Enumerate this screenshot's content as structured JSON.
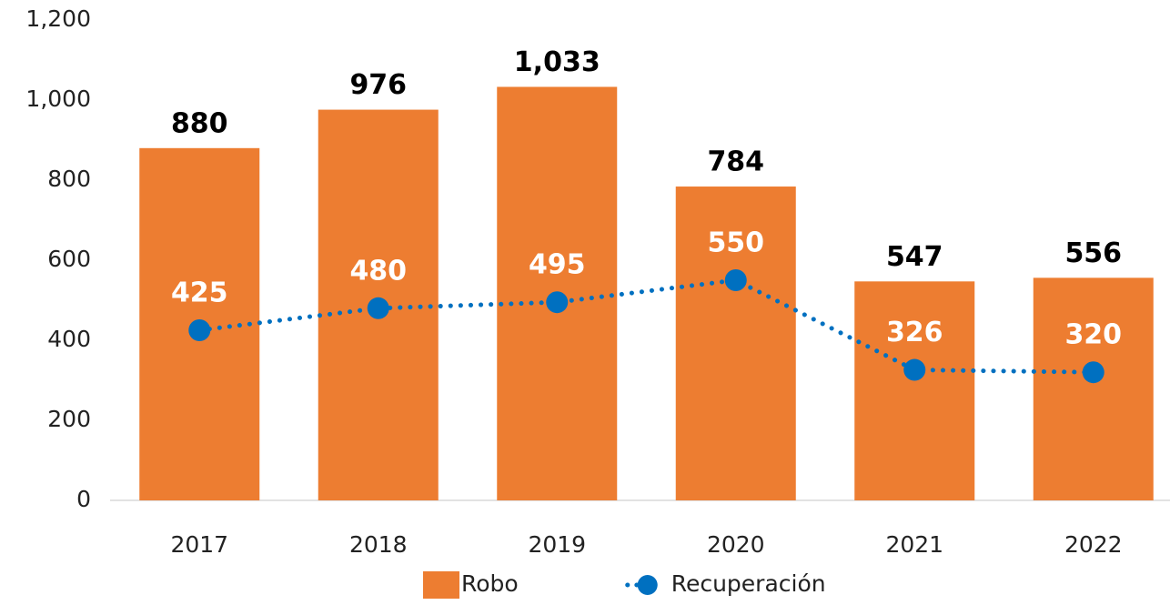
{
  "chart_data": {
    "type": "bar",
    "categories": [
      "2017",
      "2018",
      "2019",
      "2020",
      "2021",
      "2022"
    ],
    "series": [
      {
        "name": "Robo",
        "type": "bar",
        "color": "#ed7d31",
        "values": [
          880,
          976,
          1033,
          784,
          547,
          556
        ],
        "value_labels": [
          "880",
          "976",
          "1,033",
          "784",
          "547",
          "556"
        ]
      },
      {
        "name": "Recuperación",
        "type": "line",
        "color": "#0070c0",
        "values": [
          425,
          480,
          495,
          550,
          326,
          320
        ]
      }
    ],
    "ylim": [
      0,
      1200
    ],
    "yticks": [
      0,
      200,
      400,
      600,
      800,
      {
        "value": 1000,
        "label": "1,000"
      },
      {
        "value": 1200,
        "label": "1,200"
      }
    ],
    "grid": false,
    "legend": "bottom"
  }
}
